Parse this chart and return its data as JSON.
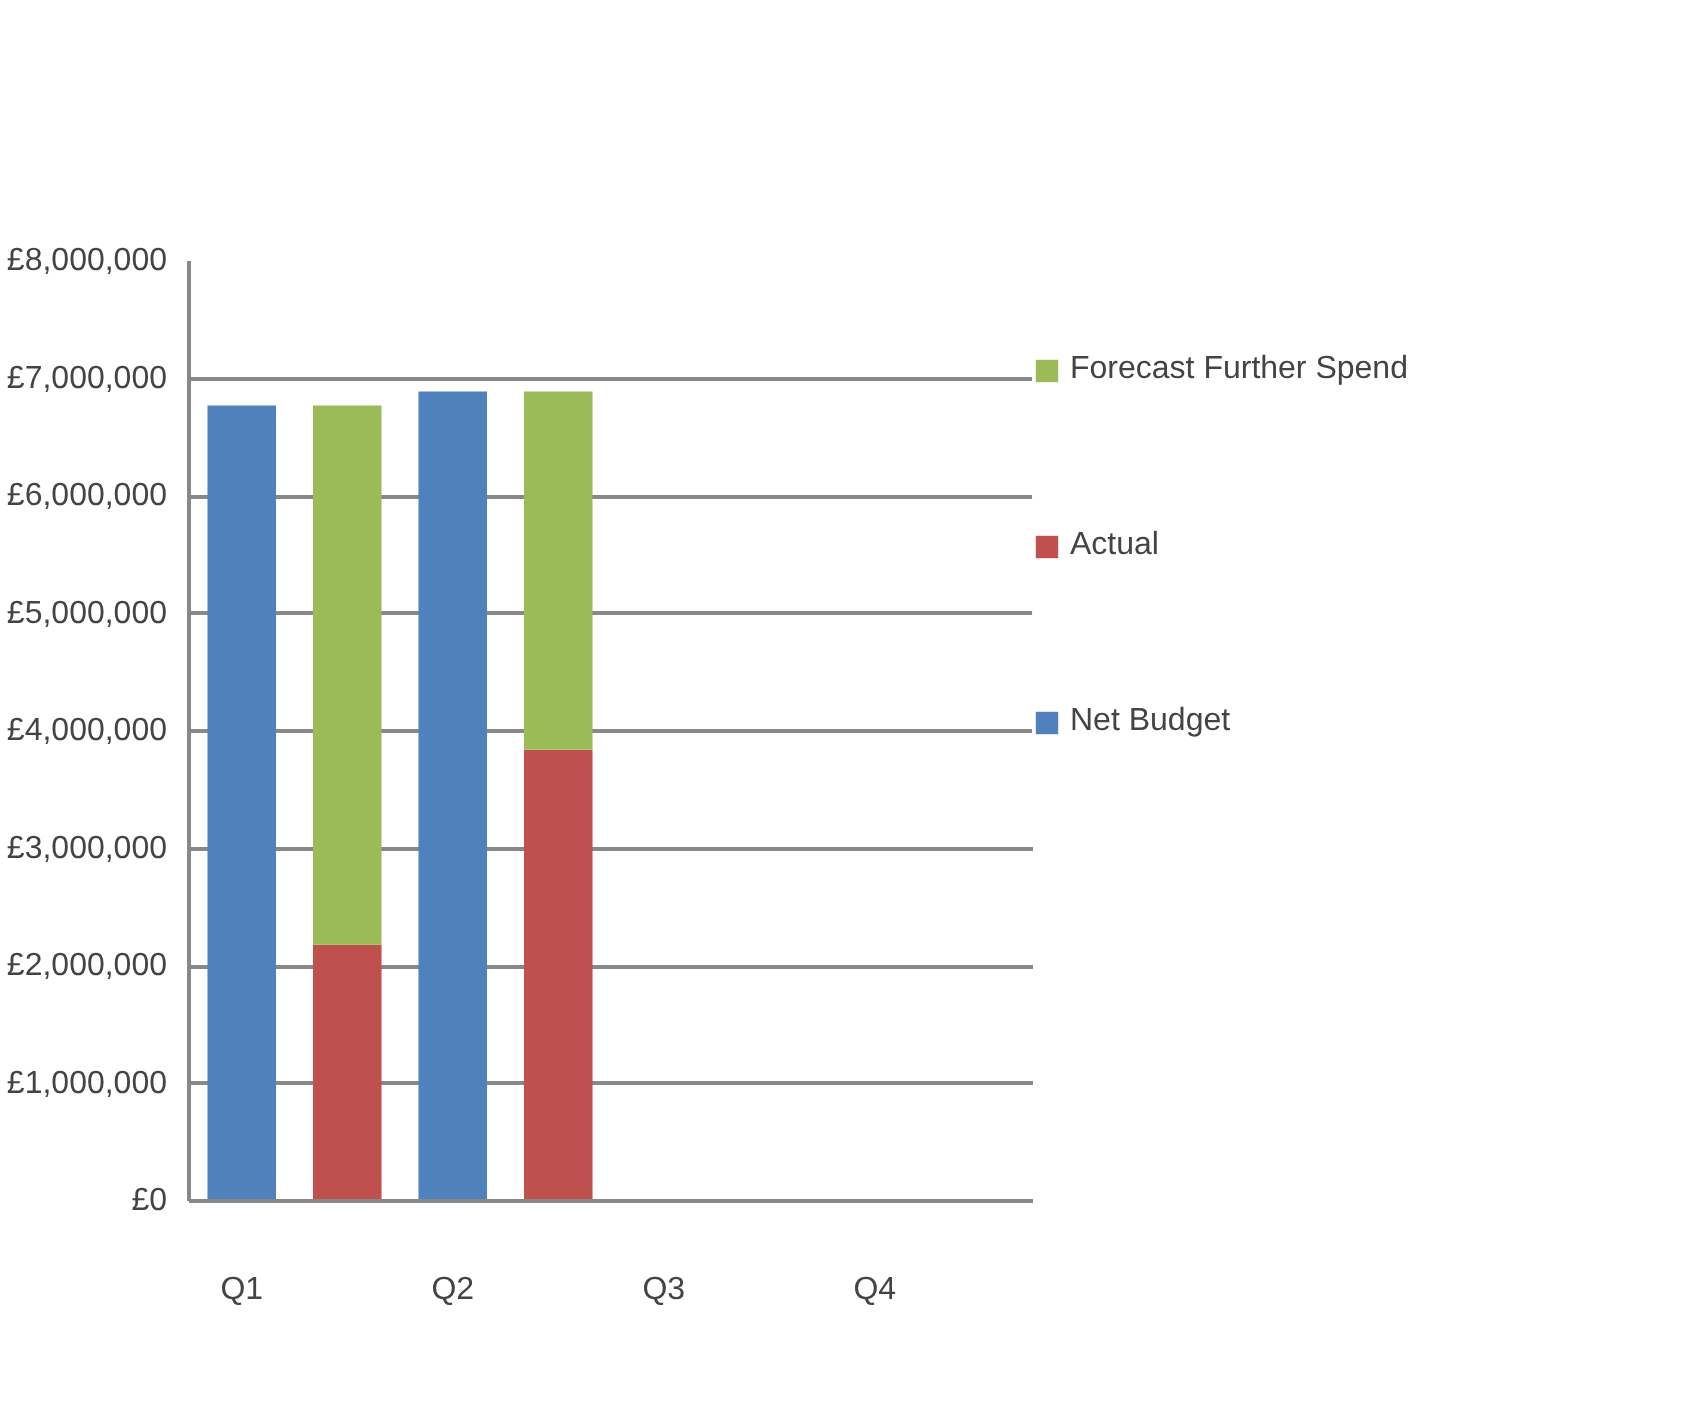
{
  "chart_data": {
    "type": "bar",
    "stacked": true,
    "categories": [
      "Q1",
      null,
      "Q2",
      null,
      "Q3",
      null,
      "Q4",
      null
    ],
    "series": [
      {
        "name": "Net Budget",
        "color": "#4f81bd",
        "values": [
          6770000,
          null,
          6890000,
          null,
          null,
          null,
          null,
          null
        ]
      },
      {
        "name": "Actual",
        "color": "#c0504d",
        "values": [
          null,
          2180000,
          null,
          3840000,
          null,
          null,
          null,
          null
        ]
      },
      {
        "name": "Forecast Further Spend",
        "color": "#9bbb59",
        "values": [
          null,
          4590000,
          null,
          3050000,
          null,
          null,
          null,
          null
        ]
      }
    ],
    "ylim": [
      0,
      8000000
    ],
    "yticks": [
      {
        "value": 0,
        "label": "£0"
      },
      {
        "value": 1000000,
        "label": "£1,000,000"
      },
      {
        "value": 2000000,
        "label": "£2,000,000"
      },
      {
        "value": 3000000,
        "label": "£3,000,000"
      },
      {
        "value": 4000000,
        "label": "£4,000,000"
      },
      {
        "value": 5000000,
        "label": "£5,000,000"
      },
      {
        "value": 6000000,
        "label": "£6,000,000"
      },
      {
        "value": 7000000,
        "label": "£7,000,000"
      },
      {
        "value": 8000000,
        "label": "£8,000,000"
      }
    ],
    "grid": "y",
    "legend": "right"
  }
}
